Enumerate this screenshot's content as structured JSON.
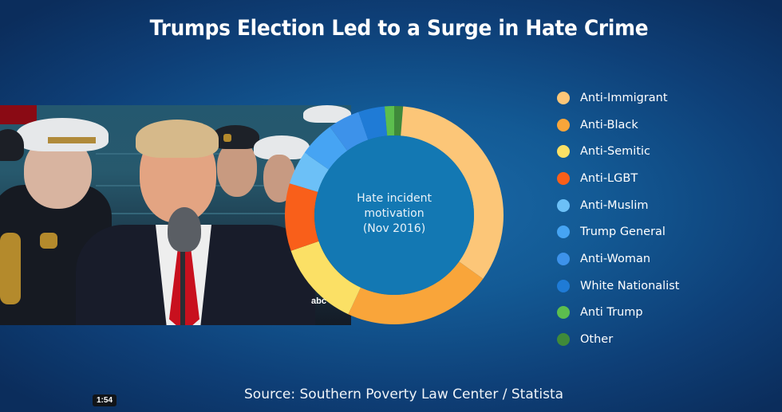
{
  "title": "Trumps Election Led to a Surge in Hate Crime",
  "source": "Source: Southern Poverty Law Center / Statista",
  "video": {
    "timestamp": "1:54",
    "watermark": "abc"
  },
  "chart_data": {
    "type": "pie",
    "variant": "donut",
    "title": "Hate incident motivation (Nov 2016)",
    "center_label_lines": [
      "Hate incident",
      "motivation",
      "(Nov 2016)"
    ],
    "legend_position": "right",
    "start_angle_deg": 0,
    "direction": "clockwise",
    "value_unit": "percent (estimated from slice angles)",
    "categories": [
      "Other",
      "Anti-Immigrant",
      "Anti-Black",
      "Anti-Semitic",
      "Anti-LGBT",
      "Anti-Muslim",
      "Trump General",
      "Anti-Woman",
      "White Nationalist",
      "Anti Trump"
    ],
    "values": [
      1.3,
      33.6,
      22.0,
      12.8,
      10.0,
      5.0,
      5.3,
      4.7,
      3.9,
      1.4
    ],
    "colors": [
      "#3f8a3a",
      "#fcc678",
      "#f9a53a",
      "#fbe065",
      "#f95f1a",
      "#6cc0f7",
      "#46a4f3",
      "#3d92ea",
      "#1f7bd6",
      "#5cbe4e"
    ]
  },
  "legend": [
    {
      "label": "Anti-Immigrant",
      "color": "#fcc678"
    },
    {
      "label": "Anti-Black",
      "color": "#f9a53a"
    },
    {
      "label": "Anti-Semitic",
      "color": "#fbe065"
    },
    {
      "label": "Anti-LGBT",
      "color": "#f95f1a"
    },
    {
      "label": "Anti-Muslim",
      "color": "#6cc0f7"
    },
    {
      "label": "Trump General",
      "color": "#46a4f3"
    },
    {
      "label": "Anti-Woman",
      "color": "#3d92ea"
    },
    {
      "label": "White Nationalist",
      "color": "#1f7bd6"
    },
    {
      "label": "Anti Trump",
      "color": "#5cbe4e"
    },
    {
      "label": "Other",
      "color": "#3f8a3a"
    }
  ]
}
